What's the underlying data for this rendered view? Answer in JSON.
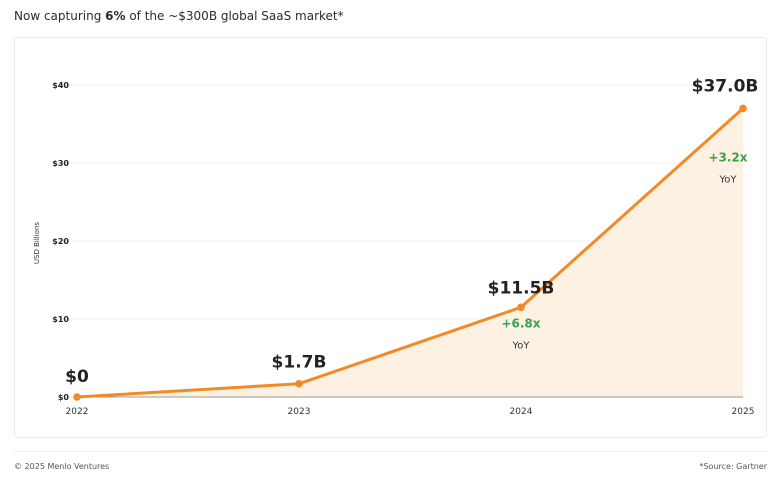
{
  "headline": {
    "prefix": "Now capturing ",
    "highlight": "6%",
    "suffix": " of the ~$300B global SaaS market*"
  },
  "footer": {
    "left": "© 2025 Menlo Ventures",
    "right": "*Source: Gartner"
  },
  "colors": {
    "line": "#f28a27",
    "area": "#fdf1e3",
    "growth": "#3aa24a",
    "grid": "#f0f0f0",
    "axis": "#9a9a9a"
  },
  "chart_data": {
    "type": "area",
    "title": "",
    "xlabel": "",
    "ylabel": "USD Billions",
    "x": [
      "2022",
      "2023",
      "2024",
      "2025"
    ],
    "series": [
      {
        "values": [
          0,
          1.7,
          11.5,
          37.0
        ]
      }
    ],
    "ylim": [
      0,
      40
    ],
    "yticks": [
      0,
      10,
      20,
      30,
      40
    ],
    "ytick_labels": [
      "$0",
      "$10",
      "$20",
      "$30",
      "$40"
    ],
    "data_labels": [
      "$0",
      "$1.7B",
      "$11.5B",
      "$37.0B"
    ],
    "annotations": [
      {
        "x": "2024",
        "text": "+6.8x",
        "subtext": "YoY"
      },
      {
        "x": "2025",
        "text": "+3.2x",
        "subtext": "YoY"
      }
    ],
    "grid": true
  }
}
